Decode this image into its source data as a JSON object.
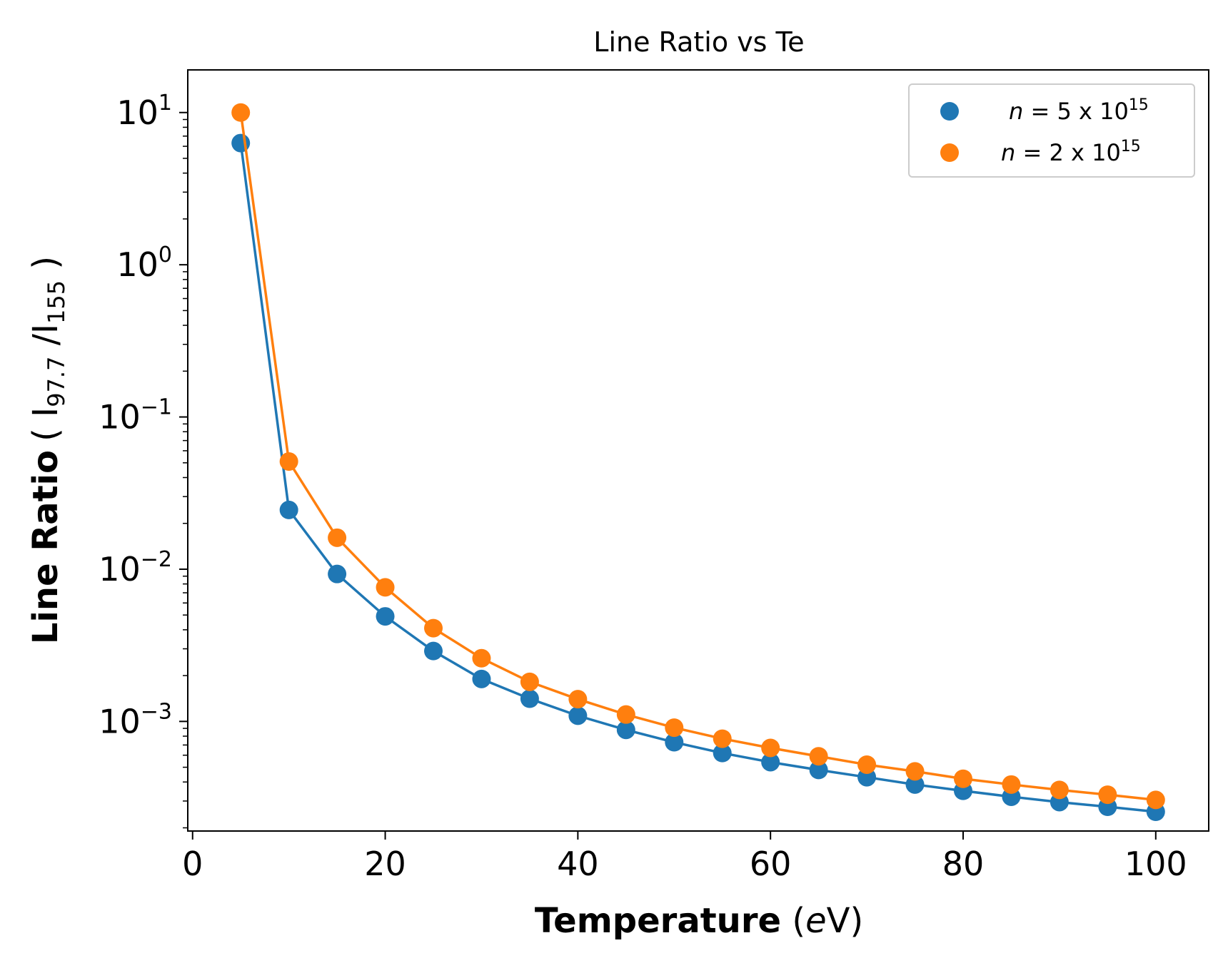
{
  "chart_data": {
    "type": "line",
    "title": "Line Ratio vs Te",
    "xlabel": {
      "bold": "Temperature",
      "unit_italic": "e",
      "unit_rest": "V"
    },
    "ylabel": {
      "bold": "Line  Ratio",
      "paren_open": "( ",
      "num": "I",
      "num_sub": "97.7",
      "slash": " /I",
      "den_sub": "155",
      "paren_close": " )"
    },
    "xlim": [
      -0.5,
      105.5
    ],
    "ylim_log10": [
      -3.72,
      1.28
    ],
    "x_ticks": [
      0,
      20,
      40,
      60,
      80,
      100
    ],
    "y_ticks": [
      {
        "base": "10",
        "exp": "1",
        "log": 1
      },
      {
        "base": "10",
        "exp": "0",
        "log": 0
      },
      {
        "base": "10",
        "exp": "−1",
        "log": -1
      },
      {
        "base": "10",
        "exp": "−2",
        "log": -2
      },
      {
        "base": "10",
        "exp": "−3",
        "log": -3
      }
    ],
    "x": [
      5,
      10,
      15,
      20,
      25,
      30,
      35,
      40,
      45,
      50,
      55,
      60,
      65,
      70,
      75,
      80,
      85,
      90,
      95,
      100
    ],
    "series": [
      {
        "name": "n = 5 x 10^15",
        "legend_italic": "n",
        "legend_rest": " = 5 x 10",
        "legend_exp": "15",
        "color": "#1f77b4",
        "values": [
          6.3,
          0.0245,
          0.0093,
          0.0049,
          0.0029,
          0.0019,
          0.00141,
          0.00109,
          0.00088,
          0.00073,
          0.00062,
          0.00054,
          0.00048,
          0.00043,
          0.000385,
          0.00035,
          0.00032,
          0.000295,
          0.000275,
          0.000255
        ]
      },
      {
        "name": "n = 2 x 10^15",
        "legend_italic": "n",
        "legend_rest": " = 2 x 10",
        "legend_exp": "15",
        "color": "#ff7f0e",
        "values": [
          10.0,
          0.051,
          0.0161,
          0.0076,
          0.0041,
          0.0026,
          0.00182,
          0.0014,
          0.00111,
          0.00091,
          0.00077,
          0.00067,
          0.00059,
          0.00052,
          0.00047,
          0.00042,
          0.000385,
          0.000355,
          0.00033,
          0.000305
        ]
      }
    ],
    "legend_position": "top-right",
    "grid": false
  }
}
